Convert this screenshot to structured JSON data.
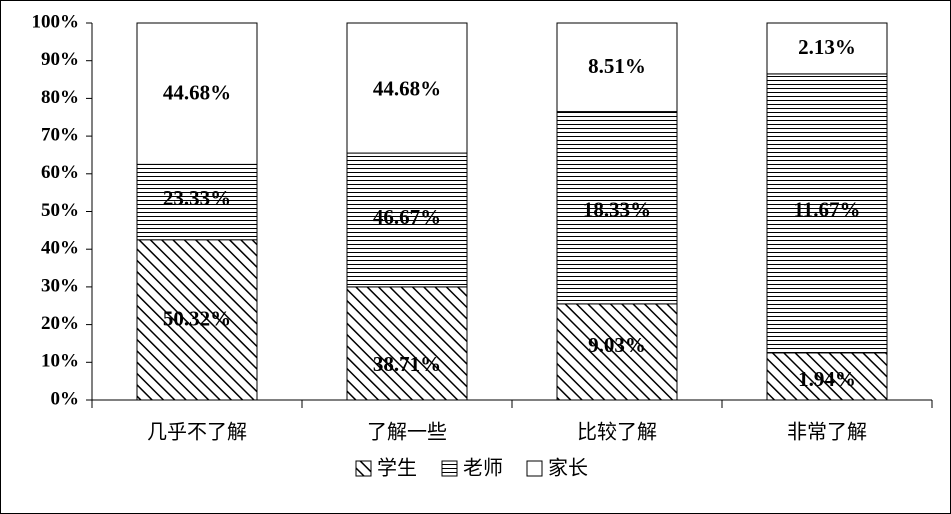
{
  "chart_data": {
    "type": "bar",
    "stacked": true,
    "categories": [
      "几乎不了解",
      "了解一些",
      "比较了解",
      "非常了解"
    ],
    "series": [
      {
        "name": "学生",
        "pattern": "diagonal-hatch",
        "values": [
          42.5,
          30.0,
          25.5,
          12.5
        ],
        "labels": [
          "50.32%",
          "38.71%",
          "9.03%",
          "1.94%"
        ]
      },
      {
        "name": "老师",
        "pattern": "horizontal-lines",
        "values": [
          20.0,
          35.5,
          51.0,
          74.0
        ],
        "labels": [
          "23.33%",
          "46.67%",
          "18.33%",
          "11.67%"
        ]
      },
      {
        "name": "家长",
        "pattern": "blank",
        "values": [
          37.5,
          34.5,
          23.5,
          13.5
        ],
        "labels": [
          "44.68%",
          "44.68%",
          "8.51%",
          "2.13%"
        ]
      }
    ],
    "title": "",
    "xlabel": "",
    "ylabel": "",
    "ylim": [
      0,
      100
    ],
    "yticks": [
      "0%",
      "10%",
      "20%",
      "30%",
      "40%",
      "50%",
      "60%",
      "70%",
      "80%",
      "90%",
      "100%"
    ],
    "grid": false,
    "legend": "bottom"
  },
  "colors": {
    "axis": "#000000",
    "fill": "#ffffff",
    "ink": "#000000"
  }
}
